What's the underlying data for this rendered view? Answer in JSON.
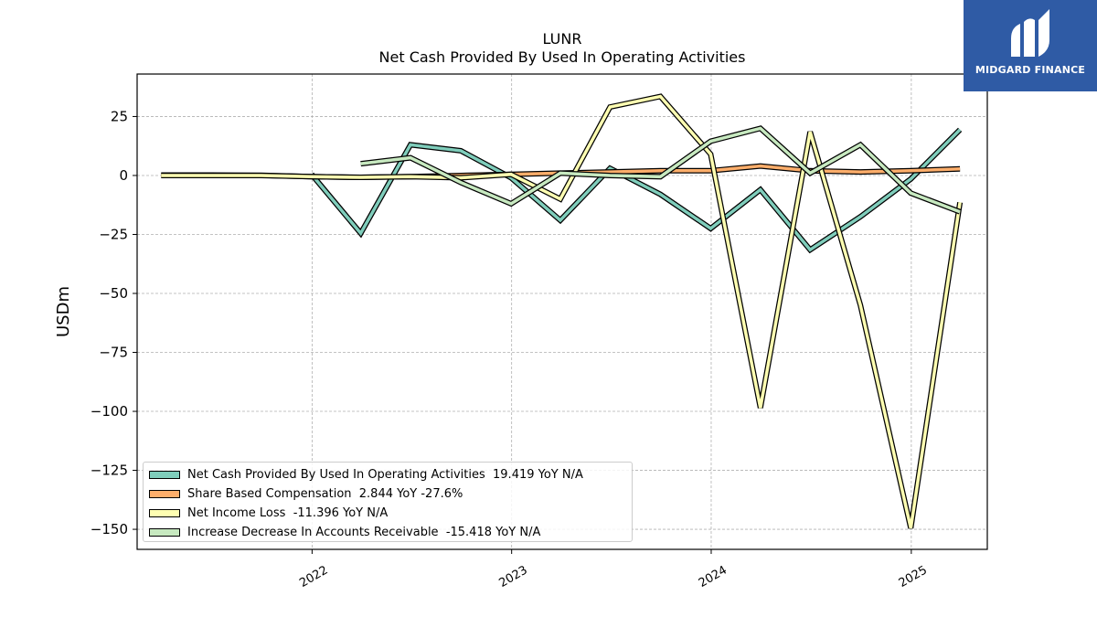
{
  "chart_data": {
    "type": "line",
    "title": "LUNR",
    "subtitle": "Net Cash Provided By Used In Operating Activities",
    "ylabel": "USDm",
    "xlabel": "",
    "x_ticks": [
      "2022",
      "2023",
      "2024",
      "2025"
    ],
    "y_ticks": [
      25,
      0,
      -25,
      -50,
      -75,
      -100,
      -125,
      -150
    ],
    "xlim": [
      "2021-02-15",
      "2025-05-20"
    ],
    "ylim": [
      -158.5,
      43
    ],
    "grid": true,
    "legend_position": "lower-left",
    "series": [
      {
        "name": "Net Cash Provided By Used In Operating Activities",
        "legend_label": "Net Cash Provided By Used In Operating Activities  19.419 YoY N/A",
        "color": "#7fcdbb",
        "x": [
          "2021-12-31",
          "2022-03-31",
          "2022-06-30",
          "2022-09-30",
          "2022-12-31",
          "2023-03-31",
          "2023-06-30",
          "2023-09-30",
          "2023-12-31",
          "2024-03-31",
          "2024-06-30",
          "2024-09-30",
          "2024-12-31",
          "2025-03-31"
        ],
        "values": [
          0.5,
          -24.5,
          13,
          10.5,
          -1,
          -19,
          3,
          -8,
          -22.5,
          -6,
          -31.5,
          -17.5,
          -1.5,
          19.4
        ]
      },
      {
        "name": "Share Based Compensation",
        "legend_label": "Share Based Compensation  2.844 YoY -27.6%",
        "color": "#fdae6b",
        "x": [
          "2021-03-31",
          "2021-06-30",
          "2021-09-30",
          "2021-12-31",
          "2022-03-31",
          "2022-06-30",
          "2022-09-30",
          "2022-12-31",
          "2023-03-31",
          "2023-06-30",
          "2023-09-30",
          "2023-12-31",
          "2024-03-31",
          "2024-06-30",
          "2024-09-30",
          "2024-12-31",
          "2025-03-31"
        ],
        "values": [
          0.2,
          0.2,
          0.1,
          -0.5,
          -0.8,
          -0.5,
          0,
          0.5,
          1,
          1.5,
          2,
          2,
          4,
          2,
          1.5,
          2,
          2.8
        ]
      },
      {
        "name": "Net Income Loss",
        "legend_label": "Net Income Loss  -11.396 YoY N/A",
        "color": "#ffffb2",
        "x": [
          "2021-03-31",
          "2021-06-30",
          "2021-09-30",
          "2021-12-31",
          "2022-03-31",
          "2022-06-30",
          "2022-09-30",
          "2022-12-31",
          "2023-03-31",
          "2023-06-30",
          "2023-09-30",
          "2023-12-31",
          "2024-03-31",
          "2024-06-30",
          "2024-09-30",
          "2024-12-31",
          "2025-03-31"
        ],
        "values": [
          0,
          0,
          0,
          -0.5,
          -0.8,
          -0.5,
          -1,
          0.5,
          -10,
          29,
          33.5,
          9,
          -98.5,
          18.5,
          -55,
          -149.5,
          -11.4
        ]
      },
      {
        "name": "Increase Decrease In Accounts Receivable",
        "legend_label": "Increase Decrease In Accounts Receivable  -15.418 YoY N/A",
        "color": "#c7e9c0",
        "x": [
          "2022-03-31",
          "2022-06-30",
          "2022-09-30",
          "2022-12-31",
          "2023-03-31",
          "2023-06-30",
          "2023-09-30",
          "2023-12-31",
          "2024-03-31",
          "2024-06-30",
          "2024-09-30",
          "2024-12-31",
          "2025-03-31"
        ],
        "values": [
          5,
          7.5,
          -3,
          -12,
          1,
          0,
          -0.5,
          14.5,
          20,
          1,
          13,
          -7.5,
          -15.4
        ]
      }
    ]
  },
  "logo": {
    "text": "MIDGARD FINANCE",
    "color": "#2f5ba5"
  }
}
